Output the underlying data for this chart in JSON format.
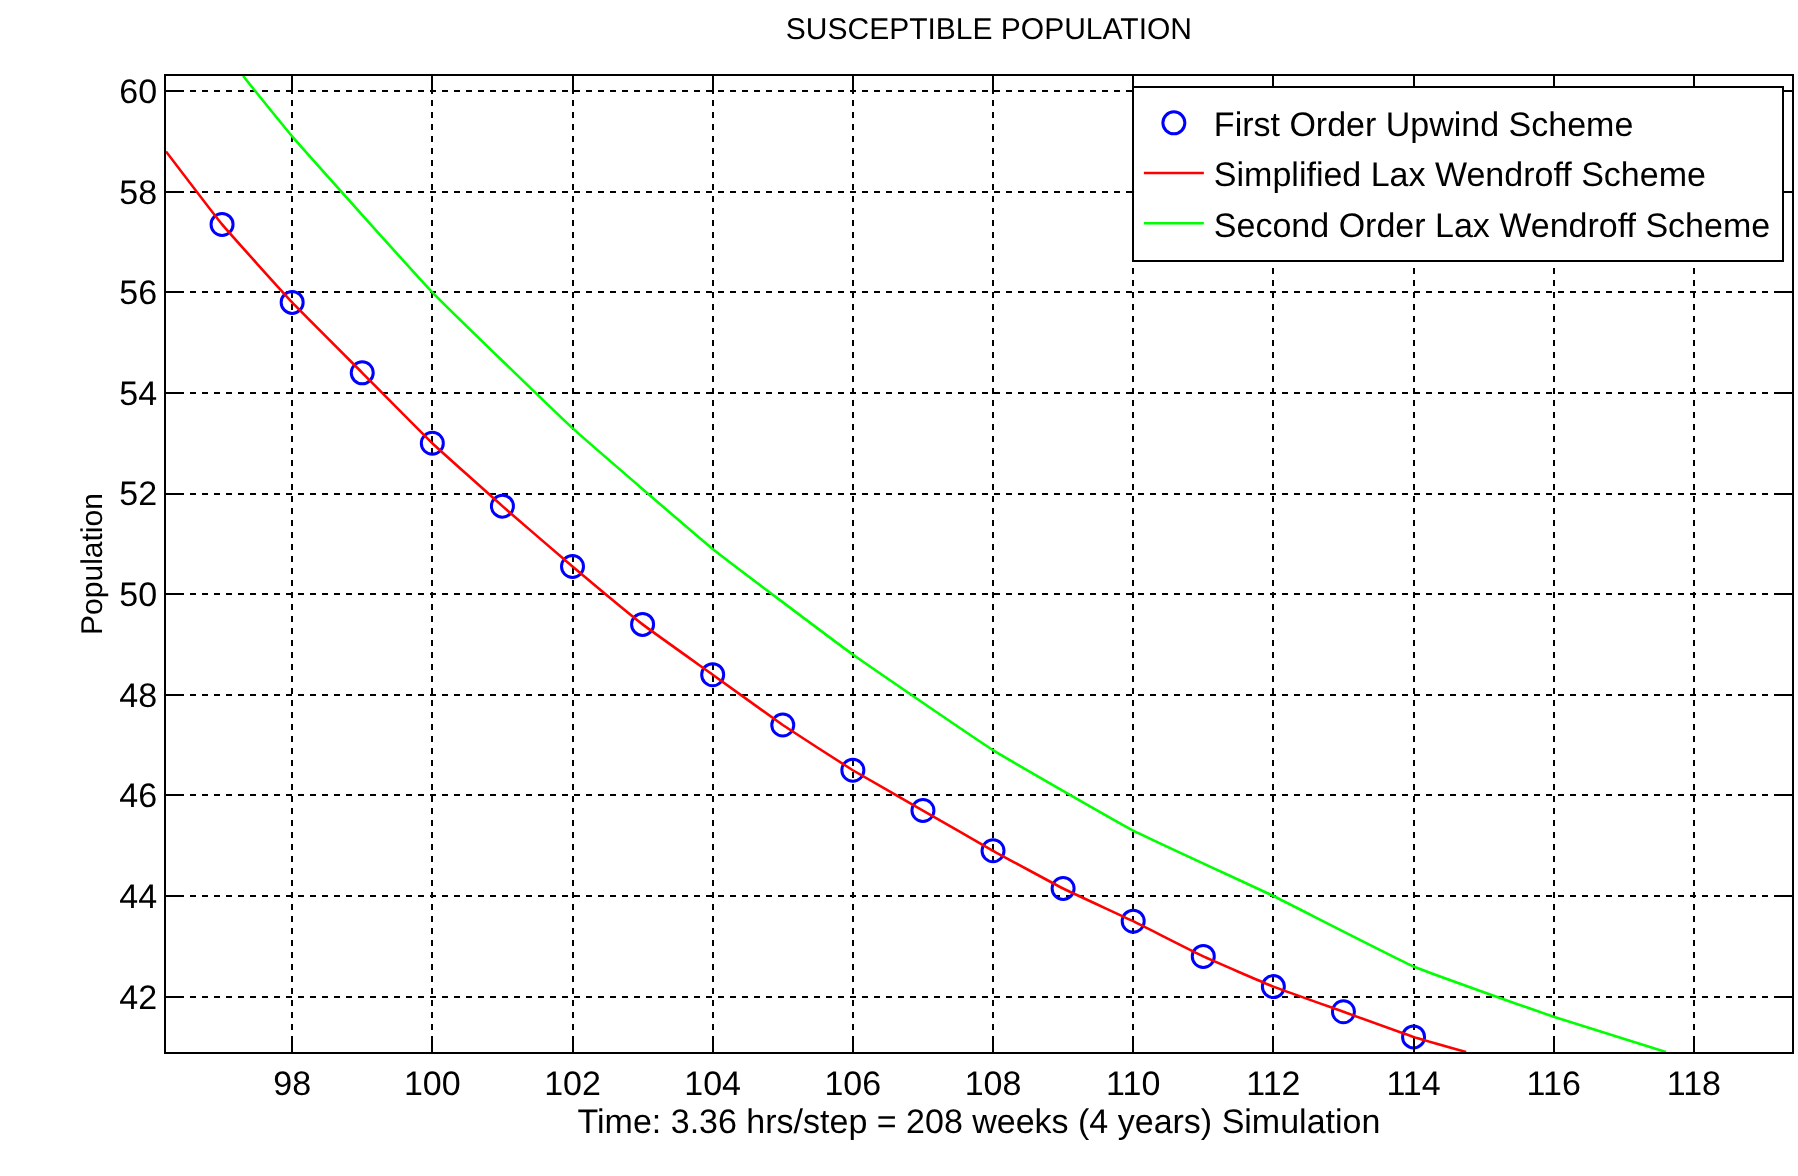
{
  "chart_data": {
    "type": "line",
    "title": "SUSCEPTIBLE POPULATION",
    "xlabel": "Time: 3.36 hrs/step = 208 weeks (4 years) Simulation",
    "ylabel": "Population",
    "xlim": [
      96.2,
      119.4
    ],
    "xticks": [
      98,
      100,
      102,
      104,
      106,
      108,
      110,
      112,
      114,
      116,
      118
    ],
    "ylim": [
      40.9,
      60.3
    ],
    "yticks": [
      42,
      44,
      46,
      48,
      50,
      52,
      54,
      56,
      58,
      60
    ],
    "grid": true,
    "legend": "top right",
    "series": [
      {
        "name": "First Order Upwind Scheme",
        "type": "scatter",
        "marker": "circle",
        "color": "#0000ff",
        "x": [
          97,
          98,
          99,
          100,
          101,
          102,
          103,
          104,
          105,
          106,
          107,
          108,
          109,
          110,
          111,
          112,
          113,
          114
        ],
        "values": [
          57.35,
          55.8,
          54.4,
          53.0,
          51.75,
          50.55,
          49.4,
          48.4,
          47.4,
          46.5,
          45.7,
          44.9,
          44.15,
          43.5,
          42.8,
          42.2,
          41.7,
          41.2
        ]
      },
      {
        "name": "Simplified Lax Wendroff Scheme",
        "color": "#ff0000",
        "x": [
          96.2,
          97,
          98,
          99,
          100,
          101,
          102,
          103,
          104,
          105,
          106,
          107,
          108,
          109,
          110,
          111,
          112,
          113,
          114,
          114.75
        ],
        "values": [
          58.8,
          57.35,
          55.8,
          54.4,
          53.0,
          51.75,
          50.55,
          49.4,
          48.4,
          47.4,
          46.5,
          45.7,
          44.9,
          44.15,
          43.5,
          42.8,
          42.2,
          41.7,
          41.2,
          40.9
        ]
      },
      {
        "name": "Second Order Lax Wendroff Scheme",
        "color": "#00ff00",
        "x": [
          97.3,
          98,
          100,
          102,
          104,
          106,
          108,
          110,
          112,
          114,
          116,
          117.6
        ],
        "values": [
          60.3,
          59.1,
          56.0,
          53.3,
          50.9,
          48.8,
          46.9,
          45.3,
          44.0,
          42.6,
          41.6,
          40.9
        ]
      }
    ]
  }
}
